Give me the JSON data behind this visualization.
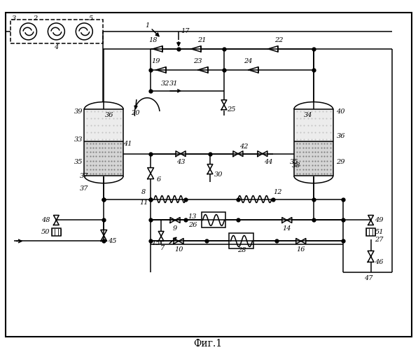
{
  "title": "Фиг.1",
  "bg": "#ffffff",
  "lc": "black",
  "lw": 1.1
}
